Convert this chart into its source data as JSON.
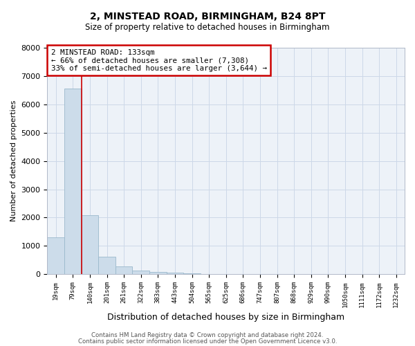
{
  "title1": "2, MINSTEAD ROAD, BIRMINGHAM, B24 8PT",
  "title2": "Size of property relative to detached houses in Birmingham",
  "xlabel": "Distribution of detached houses by size in Birmingham",
  "ylabel": "Number of detached properties",
  "footer1": "Contains HM Land Registry data © Crown copyright and database right 2024.",
  "footer2": "Contains public sector information licensed under the Open Government Licence v3.0.",
  "bar_color": "#ccdcea",
  "bar_edge_color": "#9ab8cc",
  "annotation_text": "2 MINSTEAD ROAD: 133sqm\n← 66% of detached houses are smaller (7,308)\n33% of semi-detached houses are larger (3,644) →",
  "annotation_box_color": "#cc0000",
  "vline_color": "#cc0000",
  "categories": [
    "19sqm",
    "79sqm",
    "140sqm",
    "201sqm",
    "261sqm",
    "322sqm",
    "383sqm",
    "443sqm",
    "504sqm",
    "565sqm",
    "625sqm",
    "686sqm",
    "747sqm",
    "807sqm",
    "868sqm",
    "929sqm",
    "990sqm",
    "1050sqm",
    "1111sqm",
    "1172sqm",
    "1232sqm"
  ],
  "values": [
    1300,
    6550,
    2080,
    620,
    270,
    130,
    70,
    50,
    30,
    20,
    10,
    5,
    3,
    2,
    2,
    1,
    1,
    1,
    0,
    0,
    0
  ],
  "ylim": [
    0,
    8000
  ],
  "yticks": [
    0,
    1000,
    2000,
    3000,
    4000,
    5000,
    6000,
    7000,
    8000
  ],
  "grid_color": "#ccd8e8",
  "bg_color": "#edf2f8"
}
